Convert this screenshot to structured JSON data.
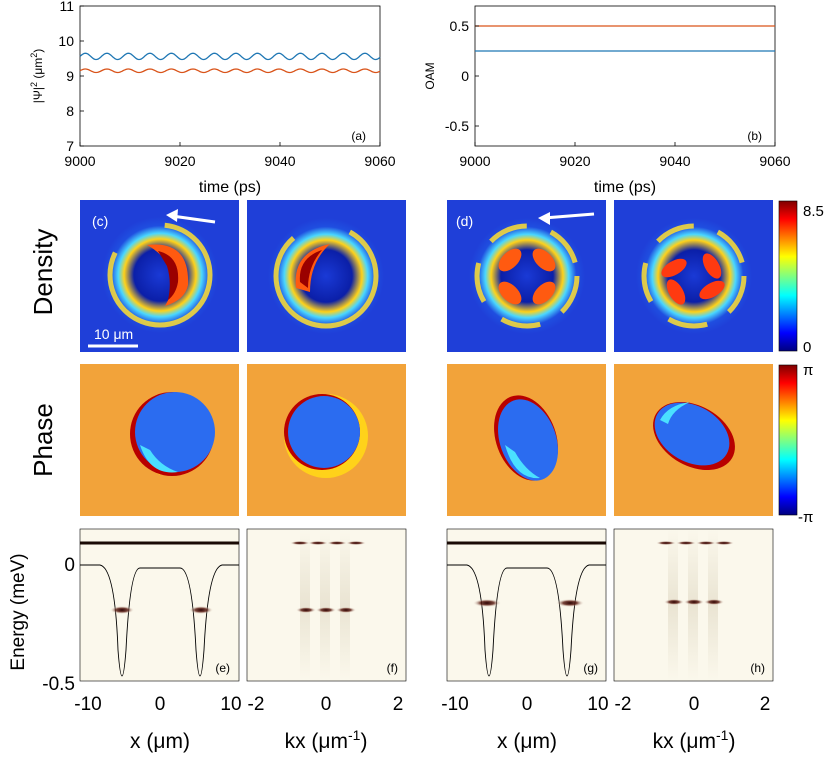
{
  "figure": {
    "row_labels": {
      "density": "Density",
      "phase": "Phase"
    },
    "colorbars": {
      "density": {
        "max_label": "8.5",
        "min_label": "0"
      },
      "phase": {
        "max_label": "π",
        "min_label": "-π"
      }
    },
    "scale_bar_label": "10 μm",
    "energy_ylabel": "Energy (meV)",
    "energy_yticks": [
      "0",
      "-0.5"
    ],
    "x_ticks": [
      "-10",
      "0",
      "10"
    ],
    "kx_ticks": [
      "-2",
      "0",
      "2"
    ],
    "xlabel_x": "x (μm)",
    "xlabel_kx": "kx (μm",
    "xlabel_kx_sup": "-1",
    "xlabel_kx_end": ")",
    "panel_labels": [
      "(a)",
      "(b)",
      "(c)",
      "(d)",
      "(e)",
      "(f)",
      "(g)",
      "(h)"
    ],
    "colors": {
      "blue_series": "#1f77b4",
      "red_series": "#d95319"
    }
  },
  "chart_data": [
    {
      "id": "a",
      "type": "line",
      "xlabel": "time (ps)",
      "ylabel": "|Ψ|",
      "ylabel_sup": "2",
      "ylabel_unit": " (μm",
      "ylabel_unit_sup": "2",
      "ylabel_end": ")",
      "xlim": [
        9000,
        9060
      ],
      "ylim": [
        7,
        11
      ],
      "xticks": [
        "9000",
        "9020",
        "9040",
        "9060"
      ],
      "yticks": [
        "7",
        "8",
        "9",
        "10",
        "11"
      ],
      "series": [
        {
          "name": "blue",
          "mean": 9.56,
          "amplitude": 0.09,
          "period": 4.3
        },
        {
          "name": "red",
          "mean": 9.15,
          "amplitude": 0.05,
          "period": 4.3
        }
      ]
    },
    {
      "id": "b",
      "type": "line",
      "xlabel": "time (ps)",
      "ylabel": "OAM",
      "xlim": [
        9000,
        9060
      ],
      "ylim": [
        -0.7,
        0.7
      ],
      "xticks": [
        "9000",
        "9020",
        "9040",
        "9060"
      ],
      "yticks": [
        "0.5",
        "0",
        "-0.5"
      ],
      "series": [
        {
          "name": "red",
          "value": 0.5
        },
        {
          "name": "blue",
          "value": 0.25
        }
      ]
    }
  ]
}
